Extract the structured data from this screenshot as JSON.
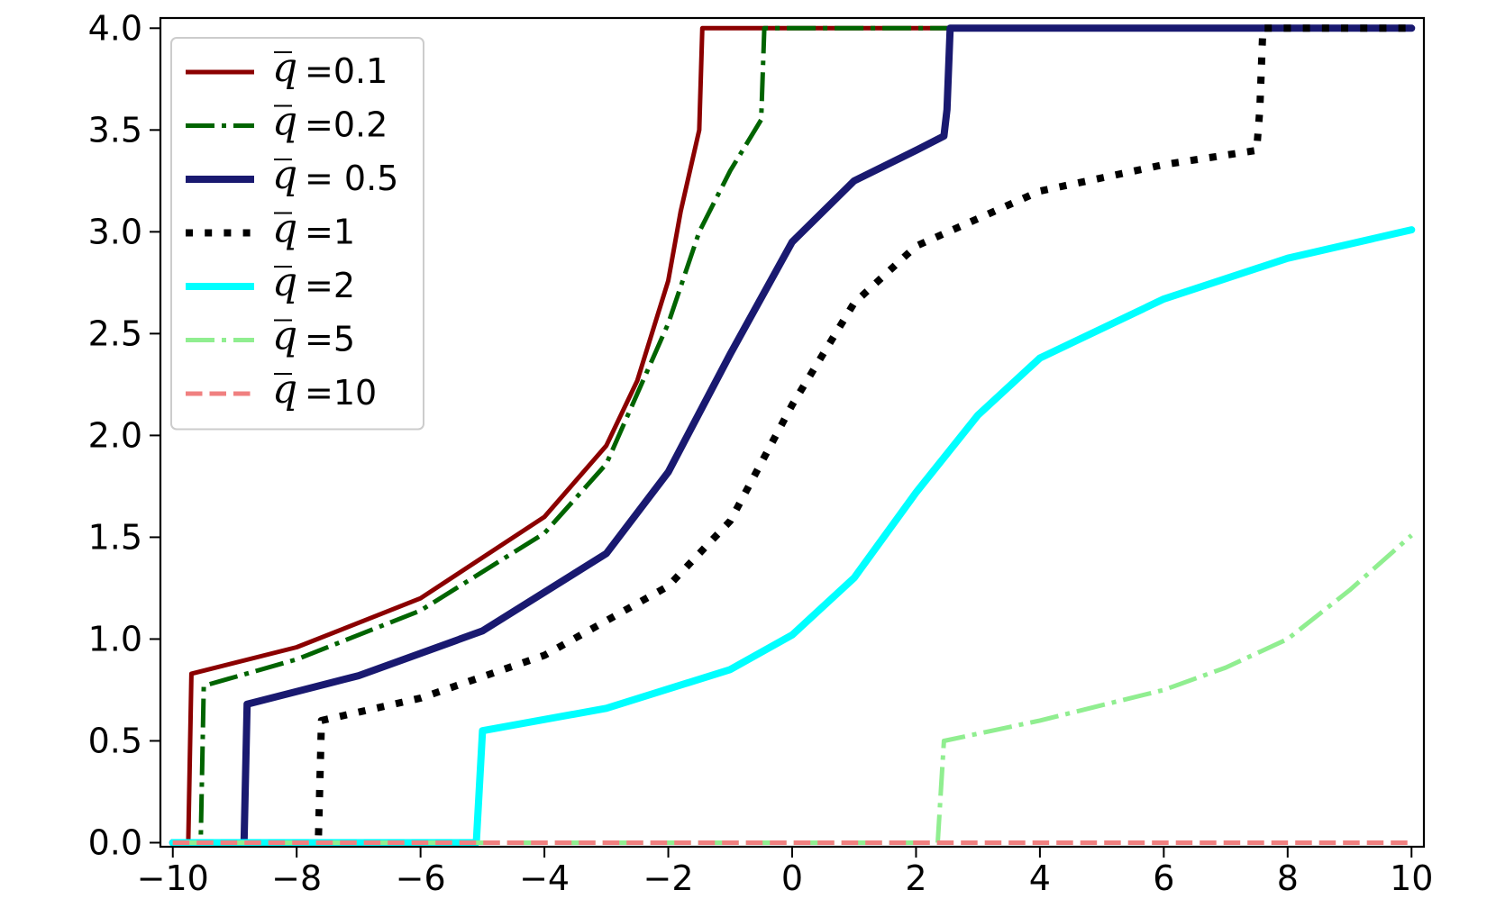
{
  "chart_data": {
    "type": "line",
    "title": "",
    "xlabel": "",
    "ylabel": "",
    "xlim": [
      -10.2,
      10.2
    ],
    "ylim": [
      -0.02,
      4.05
    ],
    "xticks": [
      -10,
      -8,
      -6,
      -4,
      -2,
      0,
      2,
      4,
      6,
      8,
      10
    ],
    "xtick_labels": [
      "−10",
      "−8",
      "−6",
      "−4",
      "−2",
      "0",
      "2",
      "4",
      "6",
      "8",
      "10"
    ],
    "yticks": [
      0.0,
      0.5,
      1.0,
      1.5,
      2.0,
      2.5,
      3.0,
      3.5,
      4.0
    ],
    "ytick_labels": [
      "0.0",
      "0.5",
      "1.0",
      "1.5",
      "2.0",
      "2.5",
      "3.0",
      "3.5",
      "4.0"
    ],
    "grid": false,
    "legend_position": "upper-left",
    "series": [
      {
        "name": "q̄ =0.1",
        "legend_value": "=0.1",
        "color": "#8b0000",
        "style": "solid",
        "width": 5,
        "x": [
          -10,
          -9.75,
          -9.7,
          -8,
          -6,
          -4,
          -3,
          -2.5,
          -2,
          -1.8,
          -1.5,
          -1.45,
          -1.4,
          10
        ],
        "y": [
          0,
          0,
          0.83,
          0.96,
          1.2,
          1.6,
          1.95,
          2.27,
          2.76,
          3.1,
          3.5,
          4.0,
          4.0,
          4.0
        ]
      },
      {
        "name": "q̄ =0.2",
        "legend_value": "=0.2",
        "color": "#006400",
        "style": "dashdot",
        "width": 5,
        "x": [
          -10,
          -9.55,
          -9.5,
          -8,
          -6,
          -4,
          -3,
          -2,
          -1.5,
          -1,
          -0.5,
          -0.45,
          -0.4,
          10
        ],
        "y": [
          0,
          0,
          0.77,
          0.9,
          1.14,
          1.52,
          1.86,
          2.55,
          3.0,
          3.3,
          3.55,
          4.0,
          4.0,
          4.0
        ]
      },
      {
        "name": "q̄ = 0.5",
        "legend_value": "= 0.5",
        "color": "#191970",
        "style": "solid",
        "width": 8,
        "x": [
          -10,
          -8.85,
          -8.8,
          -7,
          -5,
          -3,
          -2,
          -1,
          0,
          1,
          2,
          2.45,
          2.5,
          2.55,
          10
        ],
        "y": [
          0,
          0,
          0.68,
          0.82,
          1.04,
          1.42,
          1.82,
          2.4,
          2.95,
          3.25,
          3.4,
          3.47,
          3.6,
          4.0,
          4.0
        ]
      },
      {
        "name": "q̄ =1",
        "legend_value": "=1",
        "color": "#000000",
        "style": "dotted",
        "width": 8,
        "x": [
          -10,
          -7.65,
          -7.6,
          -6,
          -4,
          -2,
          -1,
          0,
          1,
          2,
          4,
          6,
          7.5,
          7.55,
          7.6,
          10
        ],
        "y": [
          0,
          0,
          0.6,
          0.71,
          0.92,
          1.26,
          1.58,
          2.15,
          2.65,
          2.93,
          3.2,
          3.33,
          3.4,
          3.6,
          4.0,
          4.0
        ]
      },
      {
        "name": "q̄ =2",
        "legend_value": "=2",
        "color": "#00ffff",
        "style": "solid",
        "width": 8,
        "x": [
          -10,
          -5.1,
          -5.0,
          -3,
          -1,
          0,
          1,
          2,
          3,
          4,
          6,
          8,
          10
        ],
        "y": [
          0,
          0,
          0.55,
          0.66,
          0.85,
          1.02,
          1.3,
          1.72,
          2.1,
          2.38,
          2.67,
          2.87,
          3.01
        ]
      },
      {
        "name": "q̄ =5",
        "legend_value": "=5",
        "color": "#90ee90",
        "style": "dashdot",
        "width": 5,
        "x": [
          -10,
          2.35,
          2.45,
          4,
          6,
          7,
          8,
          9,
          10
        ],
        "y": [
          0,
          0,
          0.5,
          0.6,
          0.75,
          0.86,
          1.0,
          1.24,
          1.51
        ]
      },
      {
        "name": "q̄ =10",
        "legend_value": "=10",
        "color": "#f08080",
        "style": "dashed",
        "width": 5,
        "x": [
          -10,
          10
        ],
        "y": [
          0,
          0
        ]
      }
    ]
  }
}
